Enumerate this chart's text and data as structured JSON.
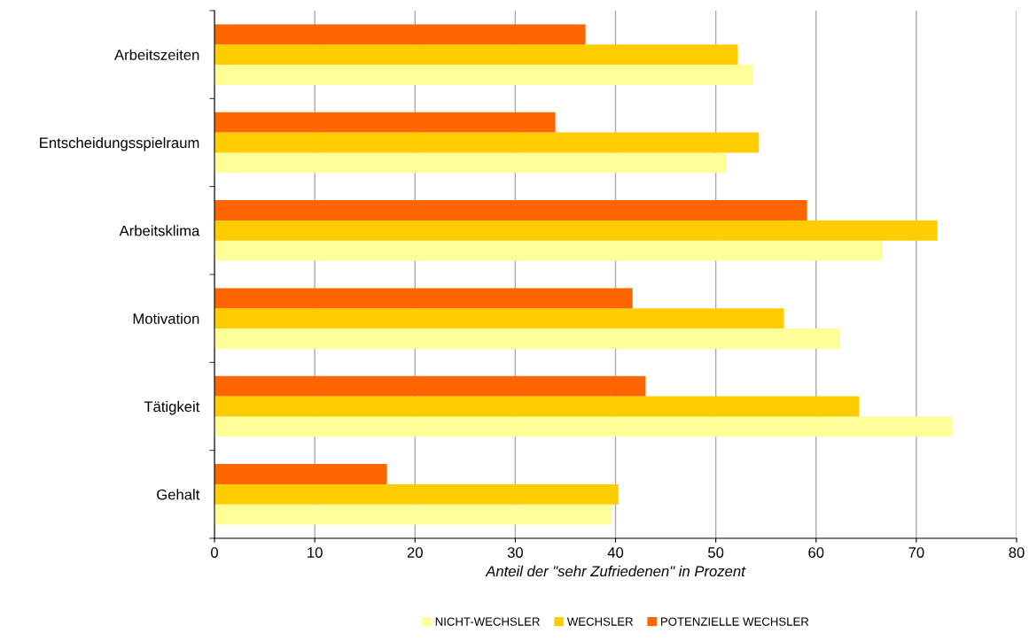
{
  "chart_data": {
    "type": "bar",
    "orientation": "horizontal",
    "xlabel": "Anteil der \"sehr Zufriedenen\" in Prozent",
    "categories": [
      "Arbeitszeiten",
      "Entscheidungsspielraum",
      "Arbeitsklima",
      "Motivation",
      "Tätigkeit",
      "Gehalt"
    ],
    "series": [
      {
        "name": "NICHT-WECHSLER",
        "color": "#ffff99",
        "values": [
          53.7,
          51.1,
          66.6,
          62.4,
          73.6,
          39.6
        ]
      },
      {
        "name": "WECHSLER",
        "color": "#ffcc00",
        "values": [
          52.2,
          54.3,
          72.1,
          56.8,
          64.3,
          40.3
        ]
      },
      {
        "name": "POTENZIELLE WECHSLER",
        "color": "#ff6600",
        "values": [
          37.0,
          34.0,
          59.1,
          41.7,
          43.0,
          17.2
        ]
      }
    ],
    "xlim": [
      0,
      80
    ],
    "xticks": [
      0,
      10,
      20,
      30,
      40,
      50,
      60,
      70,
      80
    ],
    "grid": "x",
    "legend": "bottom"
  }
}
